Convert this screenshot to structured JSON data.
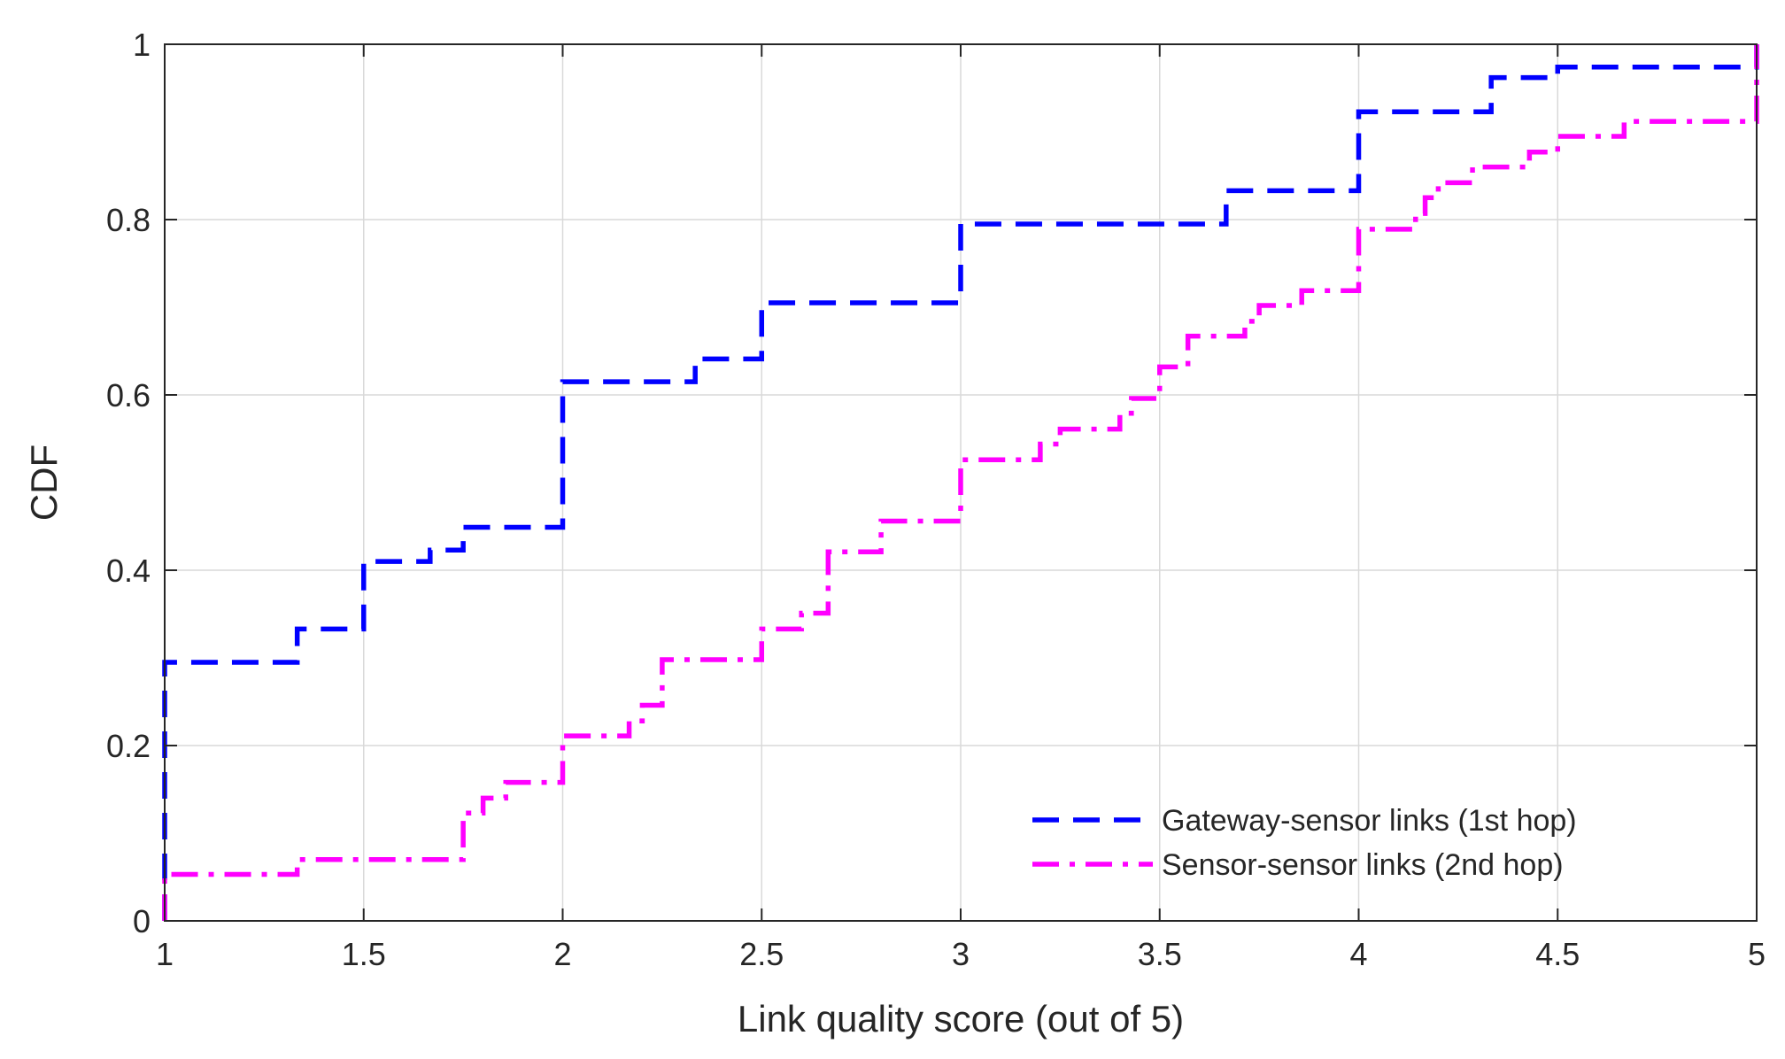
{
  "chart_data": {
    "type": "line",
    "subtype": "step-cdf",
    "title": "",
    "xlabel": "Link quality score (out of 5)",
    "ylabel": "CDF",
    "xlim": [
      1,
      5
    ],
    "ylim": [
      0,
      1
    ],
    "xticks": [
      1,
      1.5,
      2,
      2.5,
      3,
      3.5,
      4,
      4.5,
      5
    ],
    "xtick_labels": [
      "1",
      "1.5",
      "2",
      "2.5",
      "3",
      "3.5",
      "4",
      "4.5",
      "5"
    ],
    "yticks": [
      0,
      0.2,
      0.4,
      0.6,
      0.8,
      1
    ],
    "ytick_labels": [
      "0",
      "0.2",
      "0.4",
      "0.6",
      "0.8",
      "1"
    ],
    "grid": true,
    "legend_position": "bottom-right",
    "series": [
      {
        "name": "Gateway-sensor links (1st hop)",
        "color": "#0000ff",
        "line_style": "dashed",
        "points": [
          [
            1,
            0
          ],
          [
            1,
            0.295
          ],
          [
            1.333,
            0.295
          ],
          [
            1.333,
            0.308
          ],
          [
            1.333,
            0.333
          ],
          [
            1.5,
            0.333
          ],
          [
            1.5,
            0.41
          ],
          [
            1.667,
            0.41
          ],
          [
            1.667,
            0.423
          ],
          [
            1.75,
            0.423
          ],
          [
            1.75,
            0.449
          ],
          [
            2,
            0.449
          ],
          [
            2,
            0.615
          ],
          [
            2.333,
            0.615
          ],
          [
            2.333,
            0.641
          ],
          [
            2.5,
            0.641
          ],
          [
            2.5,
            0.705
          ],
          [
            3,
            0.705
          ],
          [
            3,
            0.795
          ],
          [
            3.667,
            0.795
          ],
          [
            3.667,
            0.833
          ],
          [
            4,
            0.833
          ],
          [
            4,
            0.923
          ],
          [
            4.333,
            0.923
          ],
          [
            4.333,
            0.936
          ],
          [
            4.333,
            0.962
          ],
          [
            4.5,
            0.962
          ],
          [
            4.5,
            0.974
          ],
          [
            5,
            0.974
          ],
          [
            5,
            1
          ]
        ]
      },
      {
        "name": "Sensor-sensor links (2nd hop)",
        "color": "#ff00ff",
        "line_style": "dashdot",
        "points": [
          [
            1,
            0
          ],
          [
            1,
            0.053
          ],
          [
            1.333,
            0.053
          ],
          [
            1.333,
            0.07
          ],
          [
            1.75,
            0.07
          ],
          [
            1.75,
            0.123
          ],
          [
            1.8,
            0.123
          ],
          [
            1.8,
            0.14
          ],
          [
            1.857,
            0.14
          ],
          [
            1.857,
            0.158
          ],
          [
            2,
            0.158
          ],
          [
            2,
            0.211
          ],
          [
            2.167,
            0.211
          ],
          [
            2.167,
            0.228
          ],
          [
            2.2,
            0.228
          ],
          [
            2.2,
            0.246
          ],
          [
            2.25,
            0.246
          ],
          [
            2.25,
            0.298
          ],
          [
            2.5,
            0.298
          ],
          [
            2.5,
            0.333
          ],
          [
            2.6,
            0.333
          ],
          [
            2.6,
            0.351
          ],
          [
            2.667,
            0.351
          ],
          [
            2.667,
            0.421
          ],
          [
            2.8,
            0.421
          ],
          [
            2.8,
            0.456
          ],
          [
            3,
            0.456
          ],
          [
            3,
            0.526
          ],
          [
            3.2,
            0.526
          ],
          [
            3.2,
            0.544
          ],
          [
            3.25,
            0.544
          ],
          [
            3.25,
            0.561
          ],
          [
            3.4,
            0.561
          ],
          [
            3.4,
            0.579
          ],
          [
            3.429,
            0.579
          ],
          [
            3.429,
            0.596
          ],
          [
            3.5,
            0.596
          ],
          [
            3.5,
            0.632
          ],
          [
            3.571,
            0.632
          ],
          [
            3.571,
            0.667
          ],
          [
            3.714,
            0.667
          ],
          [
            3.714,
            0.684
          ],
          [
            3.75,
            0.684
          ],
          [
            3.75,
            0.702
          ],
          [
            3.857,
            0.702
          ],
          [
            3.857,
            0.719
          ],
          [
            4,
            0.719
          ],
          [
            4,
            0.789
          ],
          [
            4.143,
            0.789
          ],
          [
            4.143,
            0.807
          ],
          [
            4.167,
            0.807
          ],
          [
            4.167,
            0.825
          ],
          [
            4.2,
            0.825
          ],
          [
            4.2,
            0.842
          ],
          [
            4.286,
            0.842
          ],
          [
            4.286,
            0.86
          ],
          [
            4.429,
            0.86
          ],
          [
            4.429,
            0.877
          ],
          [
            4.5,
            0.877
          ],
          [
            4.5,
            0.895
          ],
          [
            4.667,
            0.895
          ],
          [
            4.667,
            0.912
          ],
          [
            5,
            0.912
          ],
          [
            5,
            1
          ]
        ]
      }
    ]
  }
}
